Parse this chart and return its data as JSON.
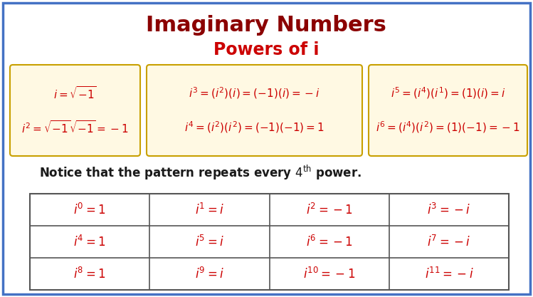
{
  "title": "Imaginary Numbers",
  "subtitle": "Powers of i",
  "title_color": "#8B0000",
  "subtitle_color": "#CC0000",
  "bg_color": "#FFFFFF",
  "border_color": "#4472C4",
  "box_bg": "#FFF9E3",
  "box_border": "#C8A000",
  "text_color_red": "#CC0000",
  "text_color_black": "#1a1a1a",
  "box1_lines": [
    "$i = \\sqrt{-1}$",
    "$i^2 = \\sqrt{-1}\\sqrt{-1} = -1$"
  ],
  "box2_lines": [
    "$i^3 = (i^2)(i) = (-1)(i) = -i$",
    "$i^4 = (i^2)(i^2) = (-1)(-1) = 1$"
  ],
  "box3_lines": [
    "$i^5 = (i^4)(i^1) = (1)(i) = i$",
    "$i^6 = (i^4)(i^2) = (1)(-1) = -1$"
  ],
  "table": [
    [
      "$i^0 = 1$",
      "$i^1 = i$",
      "$i^2 = -1$",
      "$i^3 = -i$"
    ],
    [
      "$i^4 = 1$",
      "$i^5 = i$",
      "$i^6 = -1$",
      "$i^7 = -i$"
    ],
    [
      "$i^8 = 1$",
      "$i^9 = i$",
      "$i^{10} = -1$",
      "$i^{11} = -i$"
    ]
  ]
}
